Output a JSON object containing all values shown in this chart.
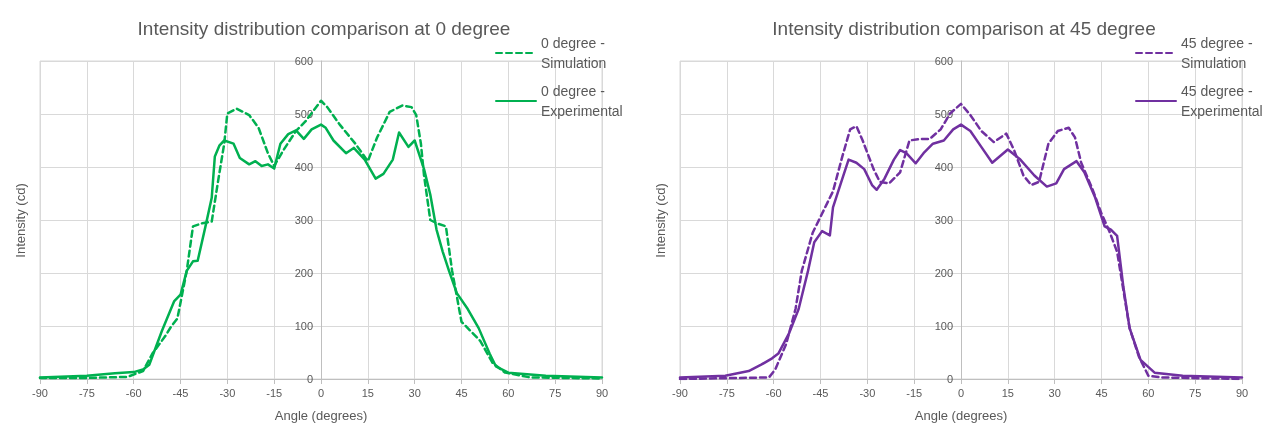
{
  "chart_data": [
    {
      "type": "line",
      "title": "Intensity distribution comparison at 0 degree",
      "xlabel": "Angle (degrees)",
      "ylabel": "Intensity (cd)",
      "xlim": [
        -90,
        90
      ],
      "xticks": [
        -90,
        -75,
        -60,
        -45,
        -30,
        -15,
        0,
        15,
        30,
        45,
        60,
        75,
        90
      ],
      "ylim": [
        0,
        600
      ],
      "yticks": [
        0,
        100,
        200,
        300,
        400,
        500,
        600
      ],
      "grid": true,
      "legend": "top right",
      "marker": "none",
      "series": [
        {
          "name": "0 degree - Simulation",
          "color": "#00b050",
          "line_style": "dashed",
          "x": [
            -90,
            -75,
            -62,
            -57,
            -54,
            -50,
            -48,
            -46,
            -43,
            -41,
            -38,
            -35,
            -33,
            -31,
            -30,
            -27,
            -23,
            -20,
            -17,
            -15,
            -12,
            -8,
            -5,
            0,
            2,
            6,
            11,
            15,
            18,
            22,
            26,
            29,
            30.5,
            32,
            33,
            35,
            37,
            40,
            42,
            45,
            48,
            51,
            55,
            59,
            67,
            90
          ],
          "values": [
            2,
            2,
            4,
            15,
            48,
            80,
            99,
            114,
            204,
            288,
            294,
            297,
            372,
            444,
            501,
            510,
            498,
            474,
            426,
            402,
            432,
            468,
            486,
            525,
            513,
            480,
            444,
            411,
            456,
            504,
            516,
            513,
            498,
            444,
            384,
            300,
            294,
            288,
            204,
            108,
            90,
            72,
            30,
            12,
            3,
            1
          ]
        },
        {
          "name": "0 degree - Experimental",
          "color": "#00b050",
          "line_style": "solid",
          "x": [
            -90,
            -75,
            -66,
            -60,
            -57,
            -55,
            -51,
            -47,
            -45,
            -43,
            -41,
            -39.5,
            -37,
            -35,
            -34,
            -32.5,
            -31,
            -28,
            -26,
            -23,
            -21,
            -19,
            -17,
            -15,
            -13,
            -10.5,
            -8,
            -5.5,
            -3,
            0,
            1.5,
            4,
            8,
            10.5,
            14,
            17.5,
            20,
            23,
            25,
            28,
            30,
            33,
            35,
            37,
            39,
            41,
            43.5,
            47,
            50.5,
            54,
            56,
            60,
            72,
            90
          ],
          "values": [
            3,
            6,
            11,
            13,
            18,
            27,
            90,
            147,
            159,
            204,
            222,
            223,
            288,
            342,
            420,
            441,
            450,
            444,
            417,
            405,
            411,
            402,
            405,
            397,
            444,
            462,
            469,
            453,
            471,
            480,
            474,
            450,
            426,
            436,
            414,
            378,
            387,
            414,
            465,
            438,
            450,
            396,
            348,
            282,
            240,
            204,
            162,
            132,
            96,
            48,
            24,
            12,
            6,
            3
          ]
        }
      ]
    },
    {
      "type": "line",
      "title": "Intensity distribution comparison at 45 degree",
      "xlabel": "Angle (degrees)",
      "ylabel": "Intensity (cd)",
      "xlim": [
        -90,
        90
      ],
      "xticks": [
        -90,
        -75,
        -60,
        -45,
        -30,
        -15,
        0,
        15,
        30,
        45,
        60,
        75,
        90
      ],
      "ylim": [
        0,
        600
      ],
      "yticks": [
        0,
        100,
        200,
        300,
        400,
        500,
        600
      ],
      "grid": true,
      "legend": "top right",
      "marker": "none",
      "series": [
        {
          "name": "45 degree - Simulation",
          "color": "#7030a0",
          "line_style": "dashed",
          "x": [
            -90,
            -61.5,
            -59.5,
            -56,
            -53,
            -51,
            -47.5,
            -44,
            -41,
            -38,
            -35.5,
            -33.5,
            -31.5,
            -28,
            -26,
            -23,
            -19.5,
            -16.5,
            -13,
            -10,
            -6.5,
            -3.5,
            0,
            3,
            6.5,
            10.5,
            14.5,
            17,
            20,
            22.5,
            25,
            28,
            31,
            34.5,
            36.5,
            38.5,
            42,
            45,
            47.5,
            50,
            52,
            54,
            57,
            60,
            64,
            90
          ],
          "values": [
            0,
            3,
            18,
            66,
            132,
            204,
            276,
            318,
            354,
            420,
            471,
            477,
            450,
            396,
            372,
            369,
            390,
            450,
            453,
            453,
            471,
            501,
            519,
            498,
            468,
            447,
            463,
            432,
            384,
            366,
            372,
            444,
            468,
            474,
            456,
            408,
            360,
            312,
            279,
            240,
            168,
            96,
            42,
            6,
            3,
            0
          ]
        },
        {
          "name": "45 degree - Experimental",
          "color": "#7030a0",
          "line_style": "solid",
          "x": [
            -90,
            -75.5,
            -68,
            -64,
            -60.5,
            -58.5,
            -55,
            -52,
            -49,
            -47,
            -44.5,
            -42,
            -41,
            -38,
            -36,
            -33.5,
            -31,
            -28.5,
            -27,
            -24.5,
            -21.5,
            -19.5,
            -17.5,
            -14.5,
            -12,
            -9,
            -5.5,
            -2.5,
            0,
            3,
            6.5,
            10,
            15,
            19,
            23.5,
            27.5,
            30.5,
            33,
            37,
            39.5,
            43,
            46,
            48,
            50,
            52,
            54,
            57.5,
            62,
            71,
            90
          ],
          "values": [
            3,
            6,
            15,
            27,
            39,
            48,
            87,
            132,
            204,
            258,
            279,
            271,
            324,
            378,
            414,
            408,
            396,
            366,
            357,
            378,
            414,
            432,
            426,
            407,
            426,
            444,
            450,
            471,
            480,
            468,
            438,
            408,
            433,
            414,
            384,
            363,
            369,
            396,
            411,
            390,
            342,
            288,
            282,
            270,
            174,
            96,
            36,
            12,
            6,
            3
          ]
        }
      ]
    }
  ]
}
